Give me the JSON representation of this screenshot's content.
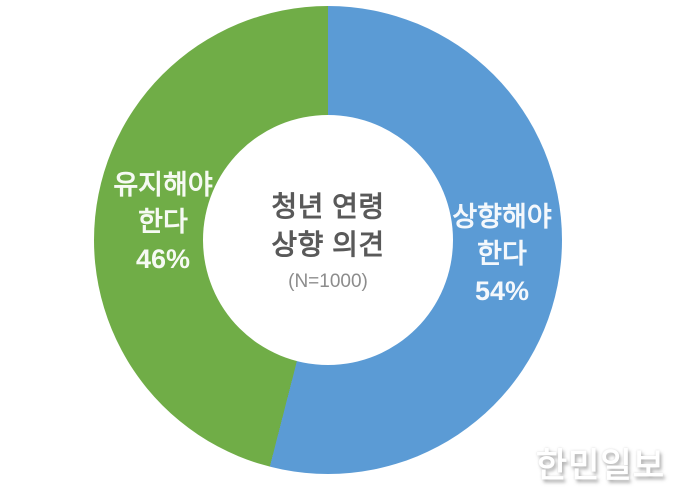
{
  "chart_data": {
    "type": "pie",
    "donut": true,
    "title": "청년 연령 상향 의견",
    "center_label": {
      "title": "청년 연령\n상향 의견",
      "subtitle": "(N=1000)"
    },
    "start_angle_deg": 0,
    "direction": "clockwise",
    "total": 100,
    "slices": [
      {
        "label": "상향해야 한다",
        "label_display": "상향해야\n한다",
        "value": 54,
        "pct_label": "54%",
        "color": "#5B9BD5"
      },
      {
        "label": "유지해야 한다",
        "label_display": "유지해야\n한다",
        "value": 46,
        "pct_label": "46%",
        "color": "#70AD47"
      }
    ],
    "legend_position": "none",
    "label_text_color": "#FFFFFF"
  },
  "watermark": {
    "text": "한민일보"
  }
}
